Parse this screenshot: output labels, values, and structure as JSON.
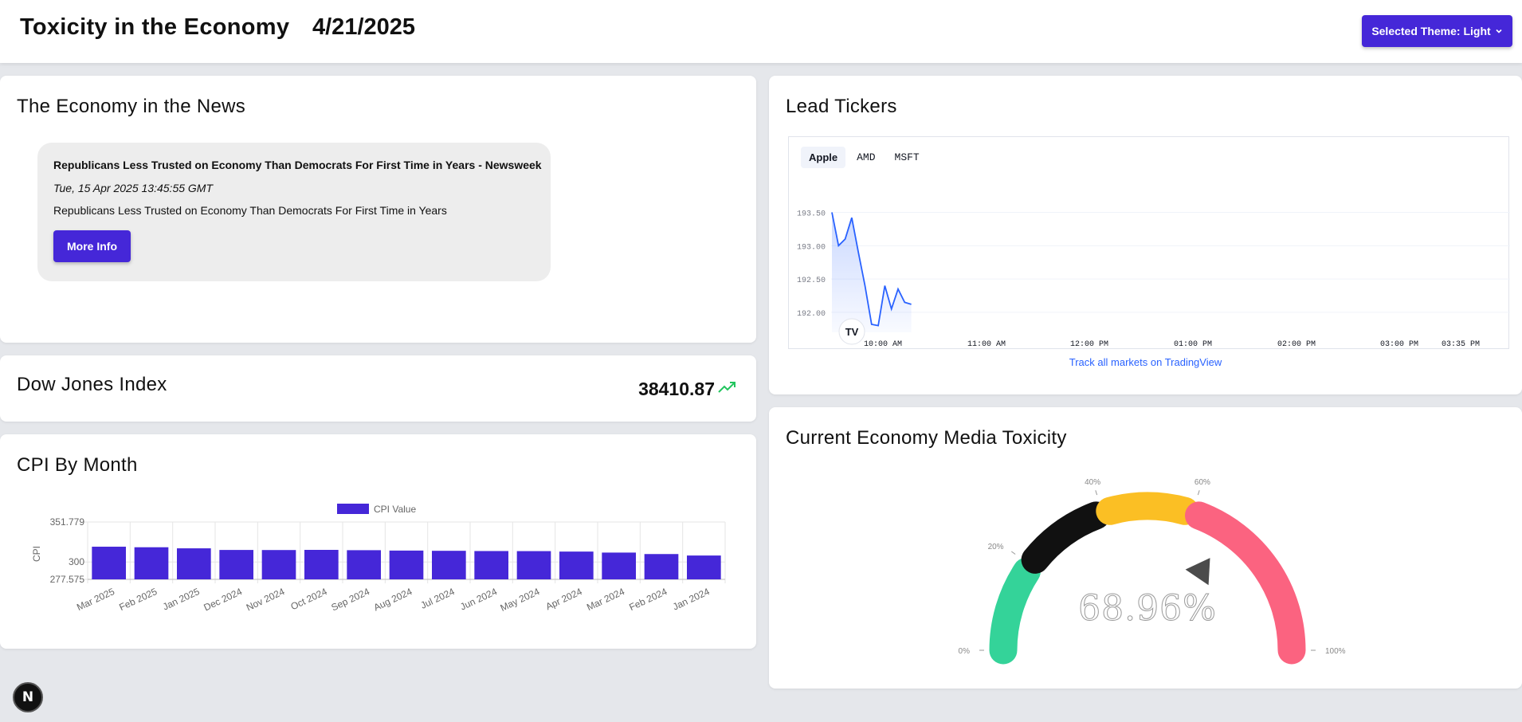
{
  "header": {
    "title": "Toxicity in the Economy",
    "date": "4/21/2025",
    "theme_button_label": "Selected Theme: Light"
  },
  "news": {
    "title": "The Economy in the News",
    "items": [
      {
        "headline": "Republicans Less Trusted on Economy Than Democrats For First Time in Years - Newsweek",
        "date": "Tue, 15 Apr 2025 13:45:55 GMT",
        "description": "Republicans Less Trusted on Economy Than Democrats For First Time in Years",
        "button_label": "More Info"
      }
    ]
  },
  "dow": {
    "title": "Dow Jones Index",
    "value": "38410.87",
    "trend_icon": "trending-up-icon",
    "trend_color": "#22c55e"
  },
  "cpi": {
    "title": "CPI By Month",
    "chart_data": {
      "type": "bar",
      "series": [
        {
          "name": "CPI Value",
          "color": "#4527d8"
        }
      ],
      "categories": [
        "Mar 2025",
        "Feb 2025",
        "Jan 2025",
        "Dec 2024",
        "Nov 2024",
        "Oct 2024",
        "Sep 2024",
        "Aug 2024",
        "Jul 2024",
        "Jun 2024",
        "May 2024",
        "Apr 2024",
        "Mar 2024",
        "Feb 2024",
        "Jan 2024"
      ],
      "values": [
        319.8,
        319.1,
        317.7,
        315.6,
        315.5,
        315.7,
        315.3,
        314.8,
        314.5,
        314.2,
        314.1,
        313.5,
        312.2,
        310.3,
        308.4
      ],
      "ylabel": "CPI",
      "yticks": [
        "351.779",
        "300",
        "277.575"
      ],
      "ylim": [
        277.575,
        351.779
      ],
      "legend": "top-center",
      "grid": true
    }
  },
  "tickers": {
    "title": "Lead Tickers",
    "tabs": [
      "Apple",
      "AMD",
      "MSFT"
    ],
    "active_tab": "Apple",
    "logo_text": "TV",
    "link_text": "Track all markets on TradingView",
    "chart_data": {
      "type": "area",
      "series": [
        {
          "name": "Apple",
          "color": "#2962ff"
        }
      ],
      "y": [
        193.5,
        193.0,
        193.1,
        193.42,
        192.9,
        192.4,
        191.82,
        191.8,
        192.4,
        192.05,
        192.35,
        192.15,
        192.12
      ],
      "yticks": [
        "193.50",
        "193.00",
        "192.50",
        "192.00"
      ],
      "ylim": [
        191.7,
        193.65
      ],
      "xticks": [
        "10:00 AM",
        "11:00 AM",
        "12:00 PM",
        "01:00 PM",
        "02:00 PM",
        "03:00 PM",
        "03:35 PM"
      ],
      "grid": true
    }
  },
  "toxicity": {
    "title": "Current Economy Media Toxicity",
    "value_label": "68.96%",
    "chart_data": {
      "type": "gauge",
      "value": 68.96,
      "min": 0,
      "max": 100,
      "segments": [
        {
          "from": 0,
          "to": 20,
          "color": "#34d399"
        },
        {
          "from": 20,
          "to": 40,
          "color": "#111111"
        },
        {
          "from": 40,
          "to": 60,
          "color": "#fbbf24"
        },
        {
          "from": 60,
          "to": 100,
          "color": "#fb6380"
        }
      ],
      "tick_labels": [
        "0%",
        "20%",
        "40%",
        "60%",
        "100%"
      ]
    }
  },
  "framework_badge": "N"
}
